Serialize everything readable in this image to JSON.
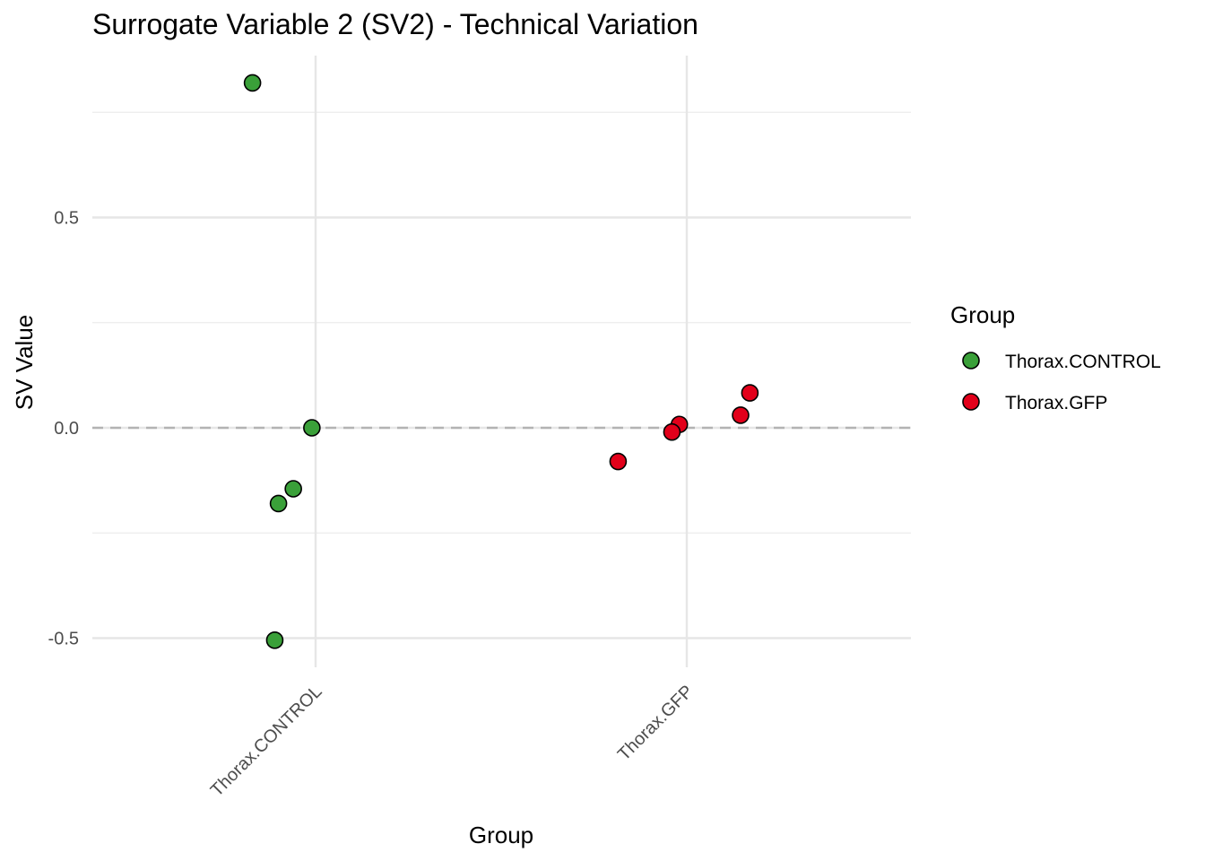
{
  "chart_data": {
    "type": "scatter",
    "title": "Surrogate Variable 2 (SV2) - Technical Variation",
    "xlabel": "Group",
    "ylabel": "SV Value",
    "categories": [
      "Thorax.CONTROL",
      "Thorax.GFP"
    ],
    "ylim": [
      -0.55,
      0.82
    ],
    "y_ticks": [
      -0.5,
      0.0,
      0.5
    ],
    "y_tick_labels": [
      "-0.5",
      "0.0",
      "0.5"
    ],
    "reference_line": {
      "y": 0.0,
      "style": "dashed",
      "color": "#b3b3b3"
    },
    "grid": true,
    "legend": {
      "title": "Group",
      "position": "right"
    },
    "series": [
      {
        "name": "Thorax.CONTROL",
        "color": "#3aa039",
        "points": [
          {
            "category": "Thorax.CONTROL",
            "jitter": -0.17,
            "y": 0.82
          },
          {
            "category": "Thorax.CONTROL",
            "jitter": -0.01,
            "y": 0.0
          },
          {
            "category": "Thorax.CONTROL",
            "jitter": -0.06,
            "y": -0.145
          },
          {
            "category": "Thorax.CONTROL",
            "jitter": -0.1,
            "y": -0.18
          },
          {
            "category": "Thorax.CONTROL",
            "jitter": -0.11,
            "y": -0.505
          }
        ]
      },
      {
        "name": "Thorax.GFP",
        "color": "#e2001a",
        "points": [
          {
            "category": "Thorax.GFP",
            "jitter": 0.17,
            "y": 0.083
          },
          {
            "category": "Thorax.GFP",
            "jitter": 0.145,
            "y": 0.03
          },
          {
            "category": "Thorax.GFP",
            "jitter": -0.02,
            "y": 0.008
          },
          {
            "category": "Thorax.GFP",
            "jitter": -0.04,
            "y": -0.01
          },
          {
            "category": "Thorax.GFP",
            "jitter": -0.185,
            "y": -0.08
          }
        ]
      }
    ]
  }
}
